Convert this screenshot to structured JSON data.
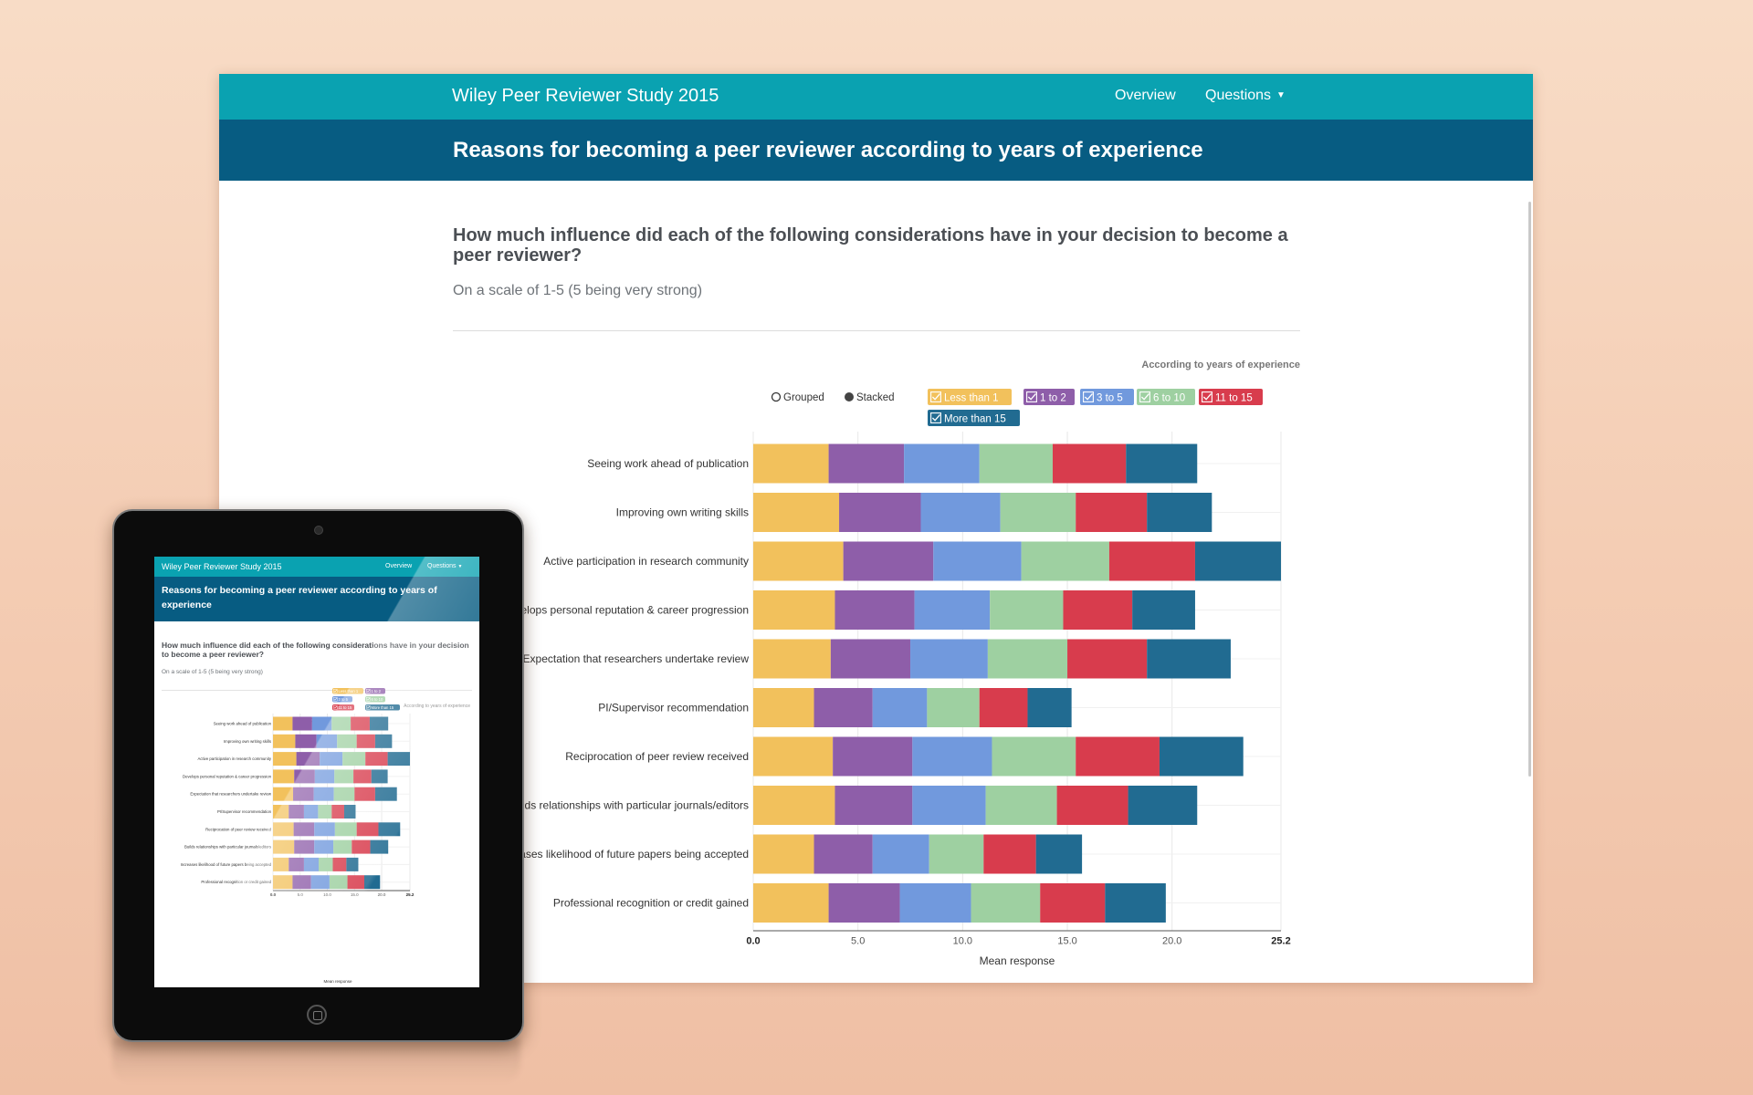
{
  "navbar": {
    "brand": "Wiley Peer Reviewer Study 2015",
    "links": [
      "Overview",
      "Questions"
    ],
    "color": "#0aa2b1"
  },
  "page": {
    "title": "Reasons for becoming a peer reviewer according to years of experience",
    "question": "How much influence did each of the following considerations have in your decision to become a peer reviewer?",
    "scale_note": "On a scale of 1-5 (5 being very strong)",
    "title_bar_color": "#075c82"
  },
  "controls": {
    "legend_caption": "According to years of experience",
    "modes": [
      {
        "label": "Grouped",
        "selected": false
      },
      {
        "label": "Stacked",
        "selected": true
      }
    ]
  },
  "chart_data": {
    "type": "bar",
    "orientation": "horizontal",
    "stacked": true,
    "categories": [
      "Seeing work ahead of publication",
      "Improving own writing skills",
      "Active participation in research community",
      "Develops personal reputation & career progression",
      "Expectation that researchers undertake review",
      "PI/Supervisor recommendation",
      "Reciprocation of peer review received",
      "Builds relationships with particular journals/editors",
      "Increases likelihood of future papers being accepted",
      "Professional recognition or credit gained"
    ],
    "series": [
      {
        "name": "Less than 1",
        "color": "#f2c15c",
        "values": [
          3.6,
          4.1,
          4.3,
          3.9,
          3.7,
          2.9,
          3.8,
          3.9,
          2.9,
          3.6
        ]
      },
      {
        "name": "1 to 2",
        "color": "#8e5ea9",
        "values": [
          3.6,
          3.9,
          4.3,
          3.8,
          3.8,
          2.8,
          3.8,
          3.7,
          2.8,
          3.4
        ]
      },
      {
        "name": "3 to 5",
        "color": "#7199dd",
        "values": [
          3.6,
          3.8,
          4.2,
          3.6,
          3.7,
          2.6,
          3.8,
          3.5,
          2.7,
          3.4
        ]
      },
      {
        "name": "6 to 10",
        "color": "#9ed0a1",
        "values": [
          3.5,
          3.6,
          4.2,
          3.5,
          3.8,
          2.5,
          4.0,
          3.4,
          2.6,
          3.3
        ]
      },
      {
        "name": "11 to 15",
        "color": "#d83c4d",
        "values": [
          3.5,
          3.4,
          4.1,
          3.3,
          3.8,
          2.3,
          4.0,
          3.4,
          2.5,
          3.1
        ]
      },
      {
        "name": "More than 15",
        "color": "#216b91",
        "values": [
          3.4,
          3.1,
          4.1,
          3.0,
          4.0,
          2.1,
          4.0,
          3.3,
          2.2,
          2.9
        ]
      }
    ],
    "xlabel": "Mean response",
    "xlim": [
      0,
      25.2
    ],
    "xticks": [
      "0.0",
      "5.0",
      "10.0",
      "15.0",
      "20.0",
      "25.2"
    ],
    "grid": true
  }
}
